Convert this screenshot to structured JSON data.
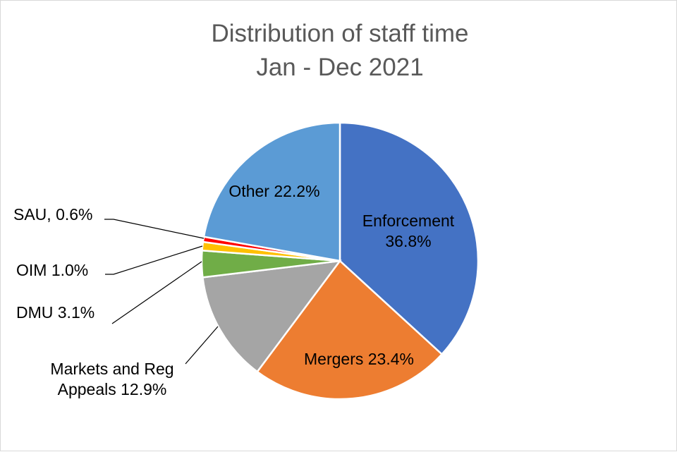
{
  "chart_data": {
    "type": "pie",
    "title": [
      "Distribution of staff time",
      "Jan - Dec 2021"
    ],
    "start_angle_deg": 0,
    "direction": "clockwise",
    "slices": [
      {
        "name": "Enforcement",
        "value": 36.8,
        "label_lines": [
          "Enforcement",
          "36.8%"
        ],
        "color": "#4472C4",
        "label_pos": "inside"
      },
      {
        "name": "Mergers",
        "value": 23.4,
        "label_lines": [
          "Mergers 23.4%"
        ],
        "color": "#ED7D31",
        "label_pos": "inside"
      },
      {
        "name": "Markets and Reg Appeals",
        "value": 12.9,
        "label_lines": [
          "Markets and Reg",
          "Appeals 12.9%"
        ],
        "color": "#A5A5A5",
        "label_pos": "outside"
      },
      {
        "name": "DMU",
        "value": 3.1,
        "label_lines": [
          "DMU 3.1%"
        ],
        "color": "#70AD47",
        "label_pos": "outside"
      },
      {
        "name": "OIM",
        "value": 1.0,
        "label_lines": [
          "OIM 1.0%"
        ],
        "color": "#FFC000",
        "label_pos": "outside"
      },
      {
        "name": "SAU",
        "value": 0.6,
        "label_lines": [
          "SAU, 0.6%"
        ],
        "color": "#FF0000",
        "label_pos": "outside"
      },
      {
        "name": "Other",
        "value": 22.2,
        "label_lines": [
          "Other 22.2%"
        ],
        "color": "#5B9BD5",
        "label_pos": "inside"
      }
    ],
    "legend": "none"
  }
}
